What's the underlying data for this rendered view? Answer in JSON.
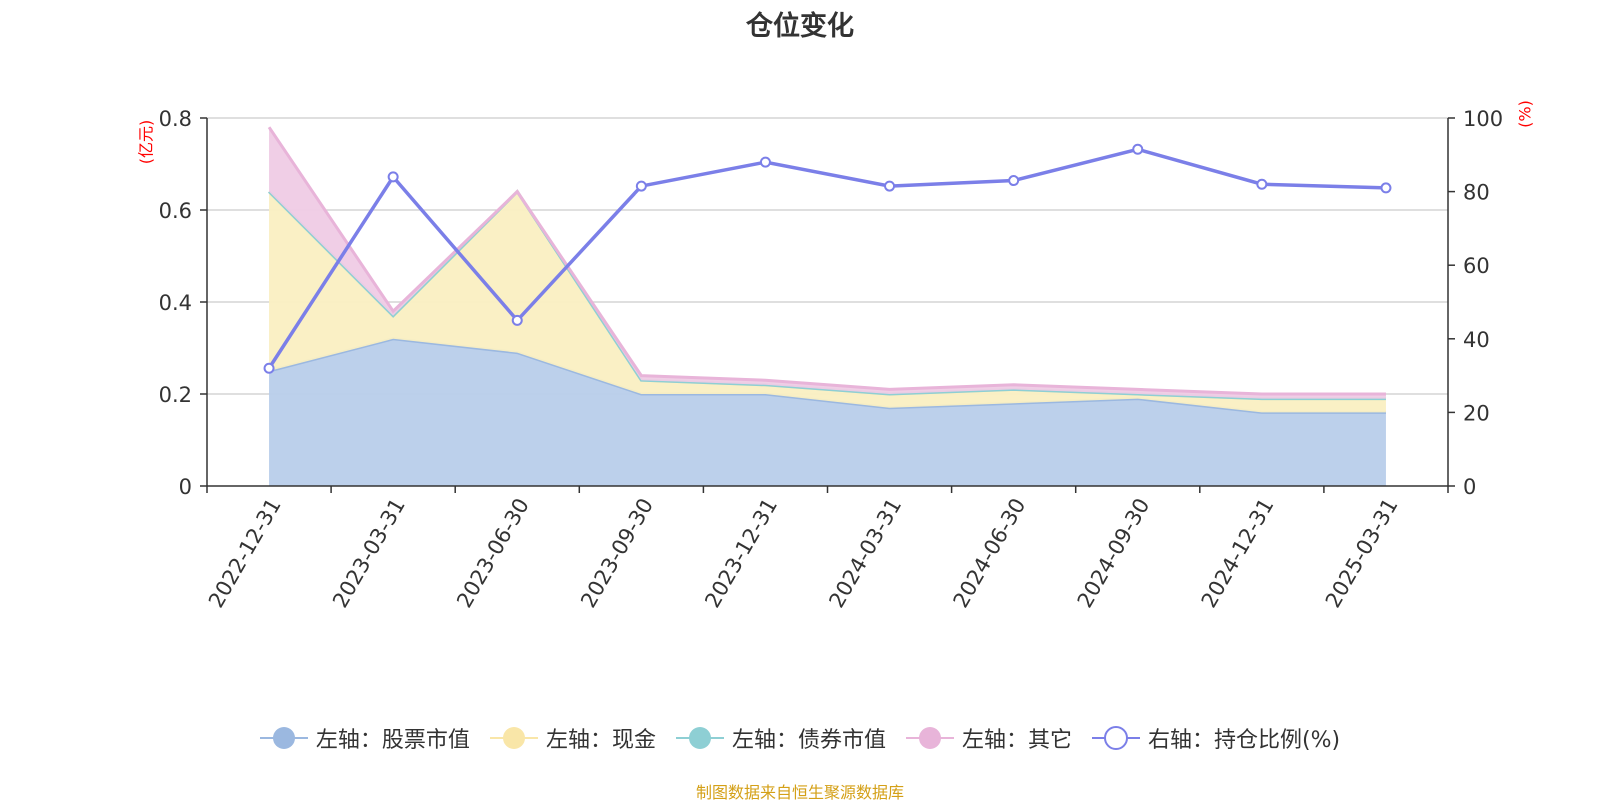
{
  "title": "仓位变化",
  "source": "制图数据来自恒生聚源数据库",
  "chart_data": {
    "type": "area",
    "title": "仓位变化",
    "categories": [
      "2022-12-31",
      "2023-03-31",
      "2023-06-30",
      "2023-09-30",
      "2023-12-31",
      "2024-03-31",
      "2024-06-30",
      "2024-09-30",
      "2024-12-31",
      "2025-03-31"
    ],
    "left_axis": {
      "unit": "(亿元)",
      "ylim": [
        0,
        0.8
      ],
      "ticks": [
        "0",
        "0.2",
        "0.4",
        "0.6",
        "0.8"
      ]
    },
    "right_axis": {
      "unit": "(%)",
      "ylim": [
        0,
        100
      ],
      "ticks": [
        "0",
        "20",
        "40",
        "60",
        "80",
        "100"
      ]
    },
    "grid": true,
    "legend_position": "bottom",
    "series": [
      {
        "name": "左轴：股票市值",
        "axis": "left",
        "stacked": true,
        "color": "#9bb8e0",
        "fill": "#b8cdea",
        "values": [
          0.25,
          0.32,
          0.29,
          0.2,
          0.2,
          0.17,
          0.18,
          0.19,
          0.16,
          0.16
        ]
      },
      {
        "name": "左轴：现金",
        "axis": "left",
        "stacked": true,
        "color": "#f9e6a8",
        "fill": "#faefc2",
        "values": [
          0.39,
          0.05,
          0.35,
          0.03,
          0.02,
          0.03,
          0.03,
          0.01,
          0.03,
          0.03
        ]
      },
      {
        "name": "左轴：债券市值",
        "axis": "left",
        "stacked": true,
        "color": "#8ecfd4",
        "fill": "#b7e2e5",
        "values": [
          0,
          0,
          0,
          0,
          0,
          0,
          0,
          0,
          0,
          0
        ]
      },
      {
        "name": "左轴：其它",
        "axis": "left",
        "stacked": true,
        "color": "#e8b4d9",
        "fill": "#efcbe5",
        "values": [
          0.14,
          0.01,
          0.0,
          0.01,
          0.01,
          0.01,
          0.01,
          0.01,
          0.01,
          0.01
        ]
      },
      {
        "name": "右轴：持仓比例(%)",
        "axis": "right",
        "stacked": false,
        "color": "#7b7fe8",
        "fill": "none",
        "values": [
          32,
          84,
          45,
          81.5,
          88,
          81.5,
          83,
          91.5,
          82,
          81
        ]
      }
    ]
  }
}
